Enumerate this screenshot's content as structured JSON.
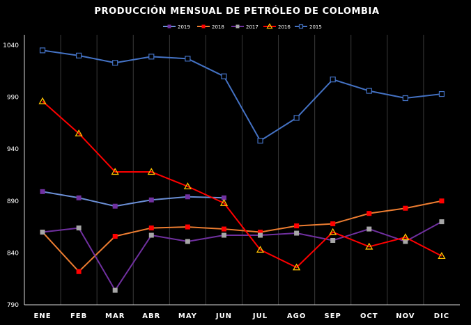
{
  "chart_data": {
    "type": "line",
    "title": "PRODUCCIÓN MENSUAL DE PETRÓLEO DE COLOMBIA",
    "xlabel": "",
    "ylabel": "",
    "categories": [
      "ENE",
      "FEB",
      "MAR",
      "ABR",
      "MAY",
      "JUN",
      "JUL",
      "AGO",
      "SEP",
      "OCT",
      "NOV",
      "DIC"
    ],
    "ylim": [
      790,
      1050
    ],
    "yticks": [
      790,
      840,
      890,
      940,
      990,
      1040
    ],
    "grid": "vertical",
    "legend_position": "top-center",
    "background": "#000000",
    "series": [
      {
        "name": "2019",
        "color": "#6b8fd6",
        "marker": "square",
        "marker_color": "#7030a0",
        "values": [
          899,
          893,
          885,
          891,
          894,
          893,
          null,
          null,
          null,
          null,
          null,
          null
        ]
      },
      {
        "name": "2018",
        "color": "#ed7d31",
        "marker": "square",
        "marker_color": "#ff0000",
        "values": [
          860,
          822,
          856,
          864,
          865,
          863,
          860,
          866,
          868,
          878,
          883,
          890
        ]
      },
      {
        "name": "2017",
        "color": "#7030a0",
        "marker": "square",
        "marker_color": "#a6a6a6",
        "values": [
          860,
          864,
          804,
          857,
          851,
          857,
          857,
          859,
          852,
          863,
          851,
          870
        ]
      },
      {
        "name": "2016",
        "color": "#ff0000",
        "marker": "triangle",
        "marker_color": "#ffc000",
        "values": [
          986,
          955,
          918,
          918,
          904,
          888,
          843,
          826,
          860,
          846,
          855,
          837
        ]
      },
      {
        "name": "2015",
        "color": "#4472c4",
        "marker": "square-open",
        "marker_color": "#4472c4",
        "values": [
          1035,
          1030,
          1023,
          1029,
          1027,
          1010,
          948,
          970,
          1007,
          996,
          989,
          993
        ]
      }
    ]
  }
}
